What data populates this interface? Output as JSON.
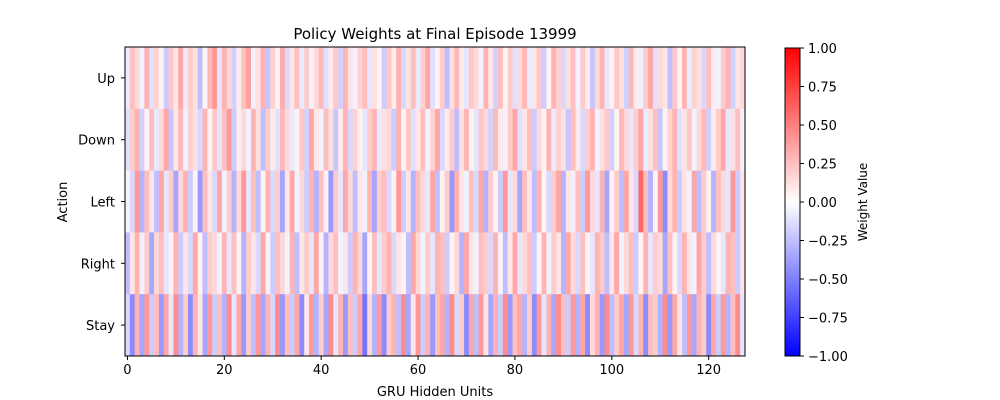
{
  "chart_data": {
    "type": "heatmap",
    "title": "Policy Weights at Final Episode 13999",
    "xlabel": "GRU Hidden Units",
    "ylabel": "Action",
    "rows": [
      "Up",
      "Down",
      "Left",
      "Right",
      "Stay"
    ],
    "n_columns": 128,
    "xlim": [
      0,
      127
    ],
    "x_ticks": [
      0,
      20,
      40,
      60,
      80,
      100,
      120
    ],
    "colormap": "bwr",
    "colorbar": {
      "label": "Weight Value",
      "range": [
        -1.0,
        1.0
      ],
      "ticks": [
        -1.0,
        -0.75,
        -0.5,
        -0.25,
        0.0,
        0.25,
        0.5,
        0.75,
        1.0
      ],
      "tick_labels": [
        "−1.00",
        "−0.75",
        "−0.50",
        "−0.25",
        "0.00",
        "0.25",
        "0.50",
        "0.75",
        "1.00"
      ]
    },
    "grid": false,
    "values": [
      [
        -0.08,
        0.25,
        0.15,
        -0.05,
        0.3,
        -0.12,
        0.18,
        0.05,
        -0.2,
        0.22,
        0.1,
        0.35,
        -0.08,
        0.2,
        0.12,
        -0.25,
        0.05,
        0.28,
        0.4,
        -0.1,
        0.3,
        0.15,
        -0.18,
        0.08,
        0.25,
        0.38,
        -0.05,
        0.12,
        0.3,
        -0.22,
        0.18,
        0.05,
        0.33,
        -0.15,
        0.1,
        0.25,
        -0.08,
        0.2,
        -0.05,
        0.15,
        0.28,
        -0.12,
        0.08,
        0.22,
        -0.18,
        0.3,
        0.1,
        -0.05,
        0.18,
        0.25,
        -0.1,
        0.12,
        0.05,
        -0.2,
        0.22,
        0.08,
        0.3,
        -0.15,
        0.1,
        0.25,
        -0.08,
        0.18,
        0.35,
        -0.12,
        0.05,
        0.2,
        -0.25,
        0.12,
        0.28,
        0.08,
        -0.1,
        0.22,
        0.15,
        -0.05,
        0.3,
        0.1,
        -0.18,
        0.25,
        0.05,
        0.2,
        -0.12,
        0.15,
        0.28,
        -0.08,
        0.1,
        0.22,
        -0.2,
        0.05,
        0.3,
        0.18,
        -0.15,
        0.12,
        0.25,
        -0.05,
        0.2,
        0.08,
        -0.22,
        0.15,
        0.3,
        -0.1,
        0.05,
        0.22,
        0.12,
        -0.18,
        0.28,
        0.08,
        -0.05,
        0.2,
        0.35,
        -0.12,
        0.15,
        0.1,
        -0.25,
        0.22,
        0.05,
        0.3,
        -0.08,
        0.18,
        0.12,
        -0.15,
        0.25,
        0.08,
        -0.05,
        0.2,
        0.3,
        -0.18,
        0.1,
        0.15
      ],
      [
        -0.12,
        0.2,
        0.3,
        -0.18,
        0.05,
        0.25,
        -0.08,
        0.15,
        0.35,
        -0.22,
        0.1,
        0.28,
        -0.05,
        0.18,
        0.12,
        -0.15,
        0.3,
        0.05,
        0.22,
        -0.1,
        0.25,
        0.4,
        -0.2,
        0.08,
        0.15,
        -0.05,
        0.3,
        0.12,
        -0.25,
        0.2,
        0.08,
        -0.12,
        0.28,
        0.15,
        -0.08,
        0.05,
        0.22,
        -0.18,
        0.35,
        0.1,
        -0.05,
        0.25,
        0.12,
        -0.22,
        0.08,
        0.3,
        -0.15,
        0.18,
        0.05,
        -0.1,
        0.2,
        0.28,
        -0.08,
        0.12,
        0.15,
        -0.2,
        0.3,
        0.05,
        0.22,
        -0.12,
        0.1,
        0.25,
        -0.05,
        0.18,
        0.35,
        -0.15,
        0.08,
        0.2,
        -0.25,
        0.12,
        0.3,
        0.05,
        -0.1,
        0.22,
        0.15,
        -0.18,
        0.28,
        0.08,
        -0.05,
        0.2,
        0.35,
        -0.12,
        0.1,
        0.25,
        -0.2,
        0.15,
        0.05,
        0.3,
        -0.08,
        0.18,
        0.12,
        -0.22,
        0.25,
        0.08,
        -0.15,
        0.2,
        0.3,
        -0.05,
        0.12,
        0.22,
        -0.18,
        0.05,
        0.28,
        0.15,
        -0.1,
        0.2,
        0.35,
        -0.08,
        0.12,
        0.25,
        -0.22,
        0.05,
        0.18,
        0.3,
        -0.12,
        0.1,
        0.22,
        -0.05,
        0.15,
        0.28,
        -0.18,
        0.08,
        0.2,
        0.35,
        -0.1,
        0.12,
        0.25,
        -0.05
      ],
      [
        0.05,
        -0.15,
        0.4,
        -0.3,
        0.25,
        0.1,
        -0.25,
        0.35,
        -0.1,
        0.2,
        -0.35,
        0.15,
        0.3,
        -0.2,
        0.05,
        -0.4,
        0.25,
        0.1,
        -0.15,
        0.35,
        -0.05,
        0.2,
        -0.3,
        0.15,
        0.4,
        -0.1,
        0.25,
        -0.25,
        0.05,
        0.3,
        -0.15,
        0.2,
        -0.35,
        0.1,
        0.35,
        -0.05,
        0.15,
        -0.2,
        0.3,
        -0.3,
        0.25,
        0.05,
        -0.4,
        0.2,
        -0.1,
        0.35,
        0.15,
        -0.25,
        0.1,
        -0.05,
        0.3,
        -0.35,
        0.2,
        0.25,
        -0.15,
        0.05,
        0.4,
        -0.2,
        0.1,
        -0.3,
        0.25,
        0.15,
        -0.1,
        0.35,
        -0.25,
        0.05,
        0.2,
        -0.4,
        0.3,
        0.1,
        -0.05,
        0.25,
        -0.15,
        0.35,
        -0.3,
        0.2,
        0.05,
        -0.2,
        0.4,
        -0.1,
        0.15,
        -0.35,
        0.25,
        0.1,
        -0.25,
        0.3,
        0.05,
        -0.15,
        0.2,
        0.35,
        -0.3,
        0.1,
        -0.05,
        0.25,
        -0.2,
        0.4,
        0.15,
        -0.1,
        0.3,
        -0.35,
        0.05,
        0.2,
        -0.25,
        0.35,
        0.1,
        -0.15,
        0.6,
        0.25,
        -0.3,
        0.05,
        0.4,
        -0.45,
        0.15,
        0.3,
        -0.2,
        0.1,
        -0.05,
        0.35,
        -0.25,
        0.2,
        0.05,
        -0.3,
        0.25,
        0.15,
        -0.1,
        0.4,
        -0.2,
        0.1
      ],
      [
        -0.25,
        0.1,
        0.3,
        -0.05,
        0.2,
        -0.35,
        0.15,
        0.25,
        -0.1,
        0.05,
        0.3,
        -0.2,
        0.1,
        -0.15,
        0.35,
        0.05,
        -0.25,
        0.2,
        0.15,
        -0.05,
        0.3,
        -0.1,
        0.25,
        0.05,
        -0.3,
        0.2,
        0.1,
        -0.15,
        0.35,
        0.05,
        -0.2,
        0.25,
        0.15,
        -0.05,
        0.3,
        -0.25,
        0.1,
        0.2,
        -0.1,
        0.35,
        0.05,
        -0.3,
        0.15,
        0.25,
        -0.05,
        0.1,
        -0.2,
        0.3,
        0.15,
        -0.35,
        0.05,
        0.25,
        -0.1,
        0.2,
        0.3,
        -0.15,
        0.1,
        0.05,
        -0.25,
        0.35,
        0.15,
        -0.05,
        0.2,
        -0.1,
        0.3,
        0.25,
        -0.2,
        0.05,
        0.15,
        -0.3,
        0.35,
        0.1,
        -0.05,
        0.25,
        0.2,
        -0.15,
        0.3,
        0.05,
        -0.25,
        0.1,
        0.35,
        -0.1,
        0.15,
        0.25,
        -0.2,
        0.05,
        0.3,
        -0.05,
        0.2,
        0.1,
        -0.3,
        0.35,
        0.15,
        -0.15,
        0.25,
        0.05,
        -0.1,
        0.3,
        0.2,
        -0.25,
        0.1,
        0.35,
        -0.05,
        0.15,
        0.25,
        -0.2,
        0.05,
        0.3,
        -0.1,
        0.2,
        0.15,
        -0.35,
        0.25,
        0.05,
        -0.15,
        0.3,
        0.1,
        -0.05,
        0.35,
        0.2,
        -0.25,
        0.15,
        0.05,
        -0.1,
        0.3,
        0.25,
        -0.2,
        0.1
      ],
      [
        -0.15,
        -0.45,
        0.3,
        -0.35,
        0.4,
        -0.2,
        0.25,
        -0.4,
        0.35,
        -0.1,
        0.45,
        -0.3,
        0.2,
        -0.45,
        0.3,
        0.1,
        -0.35,
        0.4,
        -0.2,
        0.25,
        -0.3,
        0.45,
        -0.1,
        0.35,
        -0.4,
        0.2,
        -0.25,
        0.4,
        -0.35,
        0.3,
        -0.15,
        0.45,
        -0.4,
        0.25,
        -0.2,
        0.35,
        -0.45,
        0.1,
        0.4,
        -0.3,
        0.2,
        -0.35,
        0.45,
        -0.1,
        0.3,
        -0.4,
        0.25,
        -0.2,
        0.35,
        -0.55,
        0.15,
        -0.3,
        0.4,
        -0.45,
        0.2,
        0.3,
        -0.25,
        0.45,
        -0.35,
        0.1,
        0.4,
        -0.2,
        0.3,
        -0.4,
        0.25,
        0.35,
        -0.3,
        0.45,
        -0.15,
        0.2,
        -0.45,
        0.35,
        -0.25,
        0.4,
        0.1,
        -0.35,
        0.3,
        -0.2,
        0.45,
        -0.4,
        0.25,
        0.35,
        -0.3,
        0.2,
        -0.45,
        0.4,
        -0.1,
        0.3,
        -0.35,
        0.45,
        0.25,
        -0.2,
        0.4,
        -0.3,
        0.35,
        -0.45,
        0.15,
        0.3,
        -0.4,
        0.45,
        -0.25,
        0.2,
        0.35,
        -0.35,
        0.4,
        -0.15,
        0.3,
        -0.45,
        0.25,
        0.2,
        -0.3,
        0.45,
        -0.4,
        0.35,
        0.1,
        -0.25,
        0.4,
        -0.35,
        0.3,
        0.2,
        -0.45,
        0.35,
        -0.2,
        0.4,
        -0.3,
        0.25,
        0.45,
        -0.1
      ]
    ]
  }
}
